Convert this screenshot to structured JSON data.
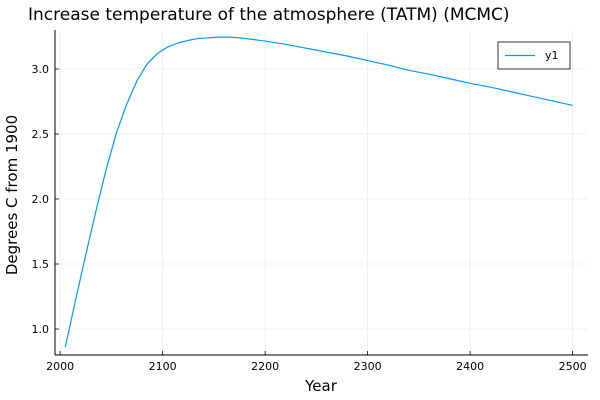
{
  "chart_data": {
    "type": "line",
    "title": "Increase temperature of the atmosphere (TATM) (MCMC)",
    "xlabel": "Year",
    "ylabel": "Degrees C from 1900",
    "xlim": [
      1995,
      2515
    ],
    "ylim": [
      0.8,
      3.3
    ],
    "xticks": [
      2000,
      2100,
      2200,
      2300,
      2400,
      2500
    ],
    "yticks": [
      1.0,
      1.5,
      2.0,
      2.5,
      3.0
    ],
    "xtick_labels": [
      "2000",
      "2100",
      "2200",
      "2300",
      "2400",
      "2500"
    ],
    "ytick_labels": [
      "1.0",
      "1.5",
      "2.0",
      "2.5",
      "3.0"
    ],
    "grid": true,
    "legend_position": "top-right",
    "series": [
      {
        "name": "y1",
        "color": "#009AFA",
        "x": [
          2005,
          2015,
          2025,
          2035,
          2045,
          2055,
          2065,
          2075,
          2085,
          2095,
          2105,
          2115,
          2125,
          2135,
          2145,
          2155,
          2165,
          2175,
          2185,
          2200,
          2220,
          2240,
          2260,
          2280,
          2300,
          2320,
          2340,
          2360,
          2380,
          2400,
          2420,
          2440,
          2460,
          2480,
          2500
        ],
        "values": [
          0.86,
          1.22,
          1.57,
          1.91,
          2.23,
          2.51,
          2.73,
          2.91,
          3.04,
          3.12,
          3.17,
          3.2,
          3.22,
          3.235,
          3.24,
          3.245,
          3.245,
          3.24,
          3.23,
          3.215,
          3.19,
          3.16,
          3.13,
          3.1,
          3.065,
          3.03,
          2.99,
          2.96,
          2.925,
          2.89,
          2.86,
          2.825,
          2.79,
          2.755,
          2.72
        ]
      }
    ]
  }
}
